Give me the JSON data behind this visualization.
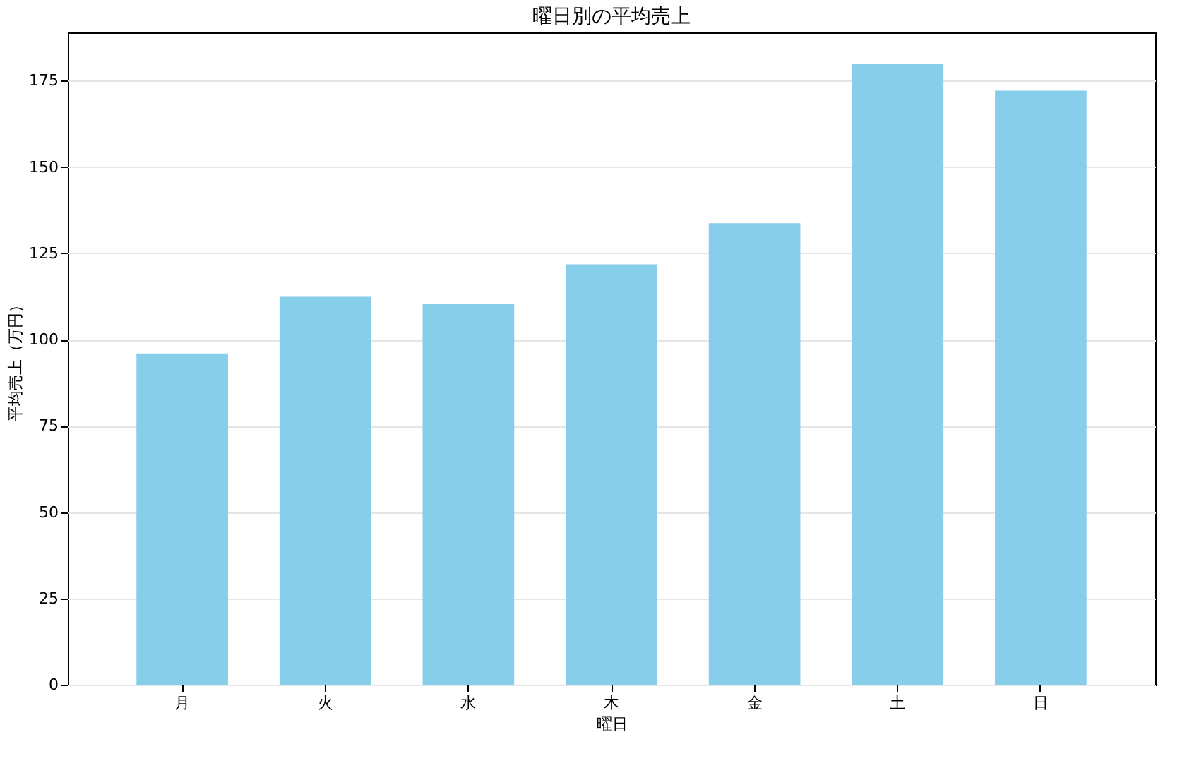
{
  "chart_data": {
    "type": "bar",
    "title": "曜日別の平均売上",
    "xlabel": "曜日",
    "ylabel": "平均売上（万円）",
    "categories": [
      "月",
      "火",
      "水",
      "木",
      "金",
      "土",
      "日"
    ],
    "values": [
      96.0,
      112.4,
      110.4,
      121.8,
      133.7,
      179.9,
      172.1
    ],
    "color": "#87ceeb",
    "ylim": [
      0,
      189
    ],
    "yticks": [
      0,
      25,
      50,
      75,
      100,
      125,
      150,
      175
    ],
    "grid": "y"
  }
}
